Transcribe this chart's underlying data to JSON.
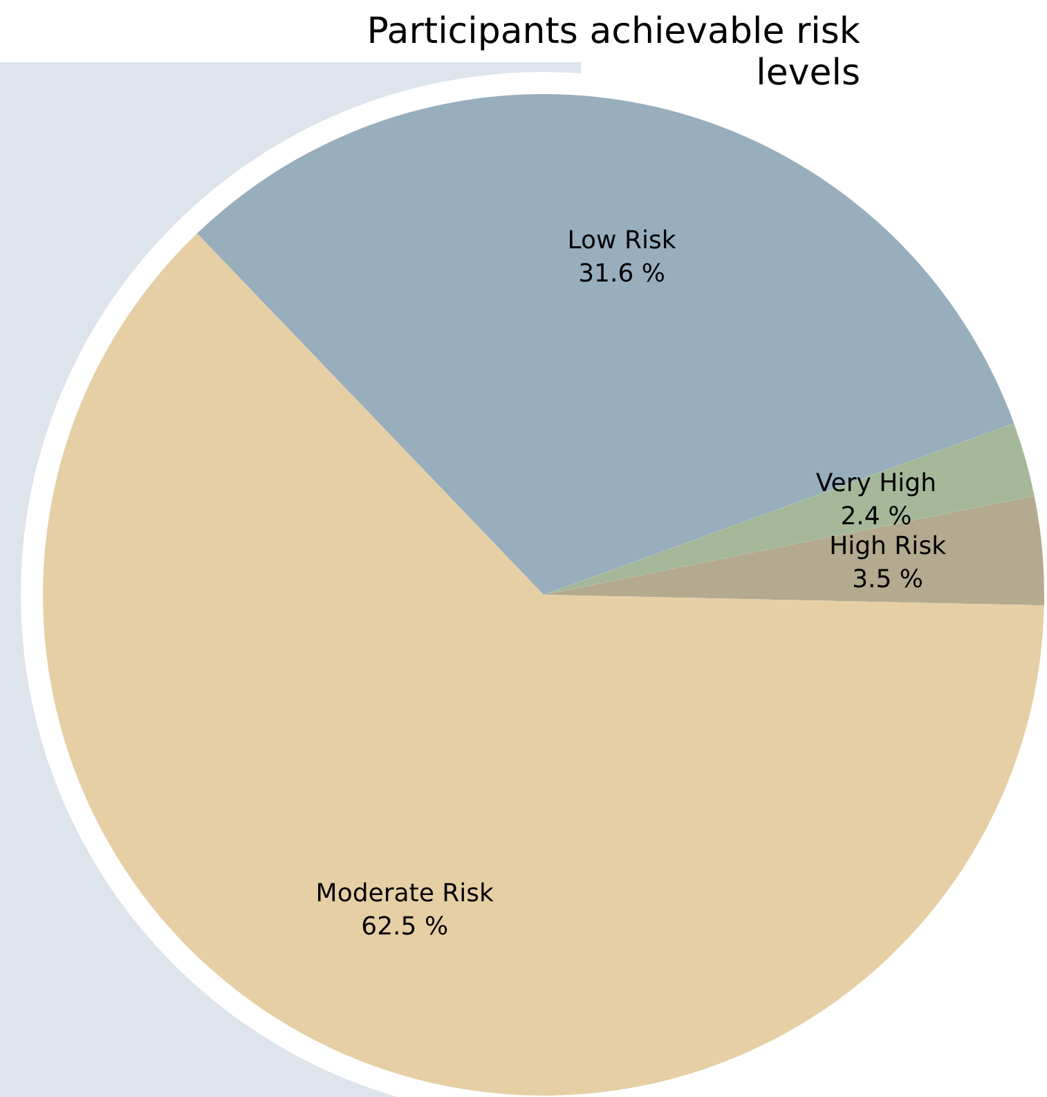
{
  "chart_data": {
    "type": "pie",
    "title": "Participants achievable risk levels",
    "categories": [
      "Low Risk",
      "Very High",
      "High Risk",
      "Moderate Risk"
    ],
    "values": [
      31.6,
      2.4,
      3.5,
      62.5
    ],
    "value_labels": [
      "31.6 %",
      "2.4 %",
      "3.5 %",
      "62.5 %"
    ],
    "colors": [
      "#98aebd",
      "#a5b99a",
      "#b3aa8f",
      "#e6cfa5"
    ],
    "legend": false
  }
}
